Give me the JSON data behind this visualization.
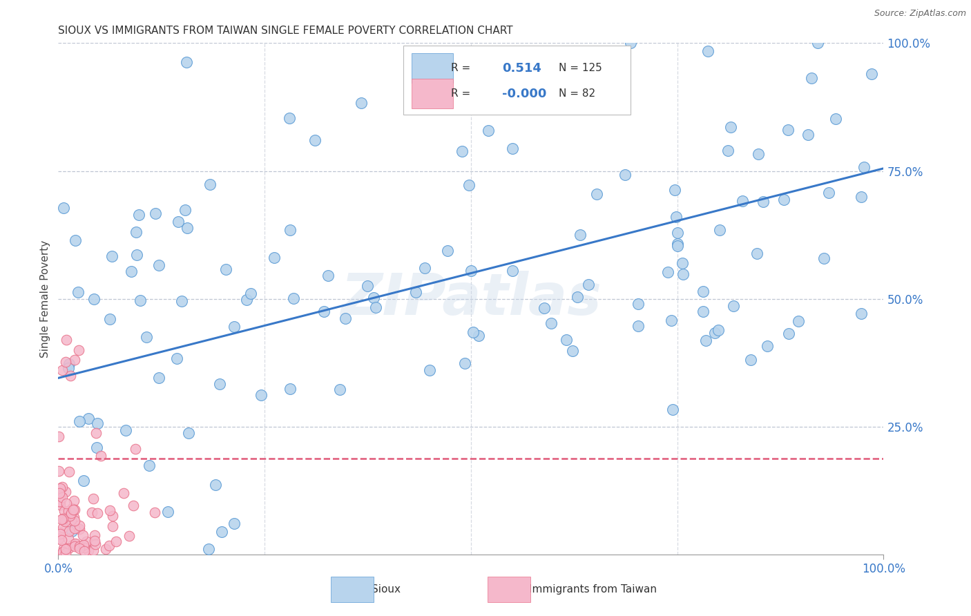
{
  "title": "SIOUX VS IMMIGRANTS FROM TAIWAN SINGLE FEMALE POVERTY CORRELATION CHART",
  "source": "Source: ZipAtlas.com",
  "ylabel": "Single Female Poverty",
  "watermark": "ZIPatlas",
  "legend_r_blue": "0.514",
  "legend_n_blue": "125",
  "legend_r_pink": "-0.000",
  "legend_n_pink": "82",
  "legend_label_blue": "Sioux",
  "legend_label_pink": "Immigrants from Taiwan",
  "blue_fill": "#b8d4ed",
  "pink_fill": "#f5b8cb",
  "blue_edge": "#5b9bd5",
  "pink_edge": "#e8728a",
  "line_blue_color": "#3878c8",
  "line_pink_color": "#e05878",
  "bg_color": "#ffffff",
  "grid_color": "#b0b8c8",
  "ytick_color": "#3878c8",
  "xtick_color": "#3878c8",
  "blue_line_x0": 0.0,
  "blue_line_y0": 0.345,
  "blue_line_x1": 1.0,
  "blue_line_y1": 0.755,
  "pink_line_x0": 0.0,
  "pink_line_y0": 0.188,
  "pink_line_x1": 1.0,
  "pink_line_y1": 0.188,
  "xlim": [
    0.0,
    1.0
  ],
  "ylim": [
    0.0,
    1.0
  ],
  "yticks": [
    0.25,
    0.5,
    0.75,
    1.0
  ],
  "ytick_labels": [
    "25.0%",
    "50.0%",
    "75.0%",
    "100.0%"
  ]
}
